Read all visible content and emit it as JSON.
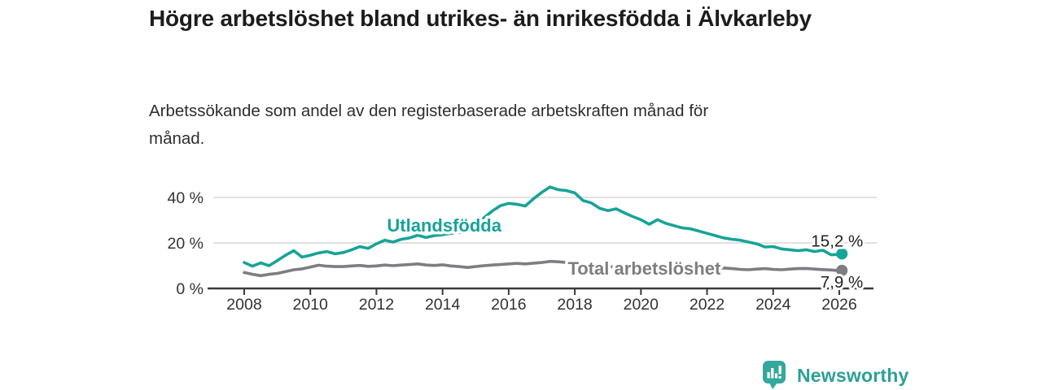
{
  "header": {},
  "footer": {
    "brand": "Newsworthy",
    "logo_color": "#35a79d"
  },
  "chart_data": {
    "type": "line",
    "title": "Högre arbetslöshet bland utrikes- än inrikesfödda i Älvkarleby",
    "subtitle": "Arbetssökande som andel av den registerbaserade arbetskraften månad för månad.",
    "xlabel": "",
    "ylabel": "",
    "unit": "%",
    "grid": "horizontal",
    "legend_position": "inline-labels",
    "x_ticks": [
      2008,
      2010,
      2012,
      2014,
      2016,
      2018,
      2020,
      2022,
      2024,
      2026
    ],
    "y_ticks": [
      {
        "value": 0,
        "label": "0 %"
      },
      {
        "value": 20,
        "label": "20 %"
      },
      {
        "value": 40,
        "label": "40 %"
      }
    ],
    "xlim": [
      2008,
      2026.2
    ],
    "ylim": [
      0,
      47
    ],
    "series": [
      {
        "name": "Utlandsfödda",
        "color": "#17a398",
        "end_label": "15,2 %",
        "end_value": 15.2,
        "label_anchor": {
          "x": 2014.05,
          "y": 27.9
        },
        "points": [
          [
            2008.0,
            11.4
          ],
          [
            2008.25,
            9.8
          ],
          [
            2008.5,
            11.2
          ],
          [
            2008.75,
            10.0
          ],
          [
            2009.0,
            12.2
          ],
          [
            2009.25,
            14.6
          ],
          [
            2009.5,
            16.6
          ],
          [
            2009.75,
            13.8
          ],
          [
            2010.0,
            14.6
          ],
          [
            2010.25,
            15.6
          ],
          [
            2010.5,
            16.2
          ],
          [
            2010.75,
            15.2
          ],
          [
            2011.0,
            15.8
          ],
          [
            2011.25,
            17.0
          ],
          [
            2011.5,
            18.4
          ],
          [
            2011.75,
            17.6
          ],
          [
            2012.0,
            19.6
          ],
          [
            2012.25,
            21.2
          ],
          [
            2012.5,
            20.4
          ],
          [
            2012.75,
            21.6
          ],
          [
            2013.0,
            22.2
          ],
          [
            2013.25,
            23.4
          ],
          [
            2013.5,
            22.4
          ],
          [
            2013.75,
            23.2
          ],
          [
            2014.0,
            23.6
          ],
          [
            2014.25,
            24.2
          ],
          [
            2014.5,
            24.6
          ],
          [
            2014.75,
            25.6
          ],
          [
            2015.0,
            27.6
          ],
          [
            2015.25,
            31.0
          ],
          [
            2015.5,
            34.0
          ],
          [
            2015.75,
            36.4
          ],
          [
            2016.0,
            37.4
          ],
          [
            2016.25,
            37.0
          ],
          [
            2016.5,
            36.2
          ],
          [
            2016.75,
            39.4
          ],
          [
            2017.0,
            42.2
          ],
          [
            2017.25,
            44.6
          ],
          [
            2017.5,
            43.4
          ],
          [
            2017.75,
            43.0
          ],
          [
            2018.0,
            42.0
          ],
          [
            2018.25,
            38.6
          ],
          [
            2018.5,
            37.6
          ],
          [
            2018.75,
            35.2
          ],
          [
            2019.0,
            34.2
          ],
          [
            2019.25,
            35.0
          ],
          [
            2019.5,
            33.2
          ],
          [
            2019.75,
            31.6
          ],
          [
            2020.0,
            30.2
          ],
          [
            2020.25,
            28.2
          ],
          [
            2020.5,
            30.2
          ],
          [
            2020.75,
            28.6
          ],
          [
            2021.0,
            27.6
          ],
          [
            2021.25,
            26.6
          ],
          [
            2021.5,
            26.2
          ],
          [
            2021.75,
            25.2
          ],
          [
            2022.0,
            24.2
          ],
          [
            2022.25,
            23.2
          ],
          [
            2022.5,
            22.2
          ],
          [
            2022.75,
            21.6
          ],
          [
            2023.0,
            21.2
          ],
          [
            2023.25,
            20.4
          ],
          [
            2023.5,
            19.6
          ],
          [
            2023.75,
            18.2
          ],
          [
            2024.0,
            18.4
          ],
          [
            2024.25,
            17.4
          ],
          [
            2024.5,
            17.0
          ],
          [
            2024.75,
            16.6
          ],
          [
            2025.0,
            17.0
          ],
          [
            2025.25,
            16.2
          ],
          [
            2025.5,
            16.8
          ],
          [
            2025.75,
            14.8
          ],
          [
            2026.0,
            15.0
          ],
          [
            2026.08,
            15.2
          ]
        ]
      },
      {
        "name": "Total arbetslöshet",
        "color": "#7d7d82",
        "end_label": "7,9 %",
        "end_value": 7.9,
        "label_anchor": {
          "x": 2020.1,
          "y": 8.9
        },
        "points": [
          [
            2008.0,
            7.0
          ],
          [
            2008.25,
            6.2
          ],
          [
            2008.5,
            5.6
          ],
          [
            2008.75,
            6.2
          ],
          [
            2009.0,
            6.6
          ],
          [
            2009.25,
            7.4
          ],
          [
            2009.5,
            8.2
          ],
          [
            2009.75,
            8.6
          ],
          [
            2010.0,
            9.4
          ],
          [
            2010.25,
            10.2
          ],
          [
            2010.5,
            9.8
          ],
          [
            2010.75,
            9.6
          ],
          [
            2011.0,
            9.6
          ],
          [
            2011.25,
            9.9
          ],
          [
            2011.5,
            10.1
          ],
          [
            2011.75,
            9.7
          ],
          [
            2012.0,
            9.9
          ],
          [
            2012.25,
            10.3
          ],
          [
            2012.5,
            10.0
          ],
          [
            2012.75,
            10.3
          ],
          [
            2013.0,
            10.5
          ],
          [
            2013.25,
            10.8
          ],
          [
            2013.5,
            10.3
          ],
          [
            2013.75,
            10.1
          ],
          [
            2014.0,
            10.4
          ],
          [
            2014.25,
            9.9
          ],
          [
            2014.5,
            9.6
          ],
          [
            2014.75,
            9.2
          ],
          [
            2015.0,
            9.6
          ],
          [
            2015.25,
            10.0
          ],
          [
            2015.5,
            10.3
          ],
          [
            2015.75,
            10.5
          ],
          [
            2016.0,
            10.8
          ],
          [
            2016.25,
            11.0
          ],
          [
            2016.5,
            10.8
          ],
          [
            2016.75,
            11.1
          ],
          [
            2017.0,
            11.4
          ],
          [
            2017.25,
            11.9
          ],
          [
            2017.5,
            11.7
          ],
          [
            2017.75,
            11.4
          ],
          [
            2018.0,
            11.0
          ],
          [
            2018.25,
            10.6
          ],
          [
            2018.5,
            10.1
          ],
          [
            2018.75,
            9.8
          ],
          [
            2019.0,
            9.6
          ],
          [
            2019.25,
            9.4
          ],
          [
            2019.5,
            9.2
          ],
          [
            2019.75,
            9.5
          ],
          [
            2020.0,
            10.0
          ],
          [
            2020.25,
            10.6
          ],
          [
            2020.5,
            10.8
          ],
          [
            2020.75,
            10.2
          ],
          [
            2021.0,
            9.8
          ],
          [
            2021.25,
            9.4
          ],
          [
            2021.5,
            9.1
          ],
          [
            2021.75,
            8.9
          ],
          [
            2022.0,
            8.7
          ],
          [
            2022.25,
            8.6
          ],
          [
            2022.5,
            9.0
          ],
          [
            2022.75,
            8.7
          ],
          [
            2023.0,
            8.4
          ],
          [
            2023.25,
            8.2
          ],
          [
            2023.5,
            8.5
          ],
          [
            2023.75,
            8.7
          ],
          [
            2024.0,
            8.4
          ],
          [
            2024.25,
            8.2
          ],
          [
            2024.5,
            8.5
          ],
          [
            2024.75,
            8.7
          ],
          [
            2025.0,
            8.8
          ],
          [
            2025.25,
            8.5
          ],
          [
            2025.5,
            8.3
          ],
          [
            2025.75,
            8.1
          ],
          [
            2026.0,
            7.8
          ],
          [
            2026.08,
            7.9
          ]
        ]
      }
    ]
  }
}
